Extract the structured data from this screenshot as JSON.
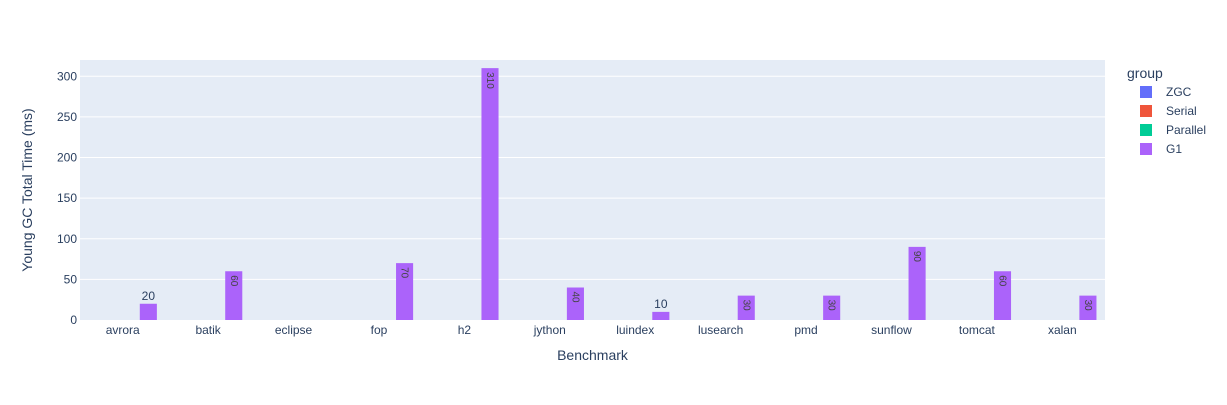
{
  "chart_data": {
    "type": "bar",
    "title": "",
    "xlabel": "Benchmark",
    "ylabel": "Young GC Total Time (ms)",
    "categories": [
      "avrora",
      "batik",
      "eclipse",
      "fop",
      "h2",
      "jython",
      "luindex",
      "lusearch",
      "pmd",
      "sunflow",
      "tomcat",
      "xalan"
    ],
    "ylim": [
      0,
      320
    ],
    "yticks": [
      0,
      50,
      100,
      150,
      200,
      250,
      300
    ],
    "legend_title": "group",
    "legend_position": "right",
    "grid": true,
    "series": [
      {
        "name": "ZGC",
        "color": "#636efa",
        "values": [
          0,
          0,
          0,
          0,
          0,
          0,
          0,
          0,
          0,
          0,
          0,
          0
        ]
      },
      {
        "name": "Serial",
        "color": "#EF553B",
        "values": [
          0,
          0,
          0,
          0,
          0,
          0,
          0,
          0,
          0,
          0,
          0,
          0
        ]
      },
      {
        "name": "Parallel",
        "color": "#00cc96",
        "values": [
          0,
          0,
          0,
          0,
          0,
          0,
          0,
          0,
          0,
          0,
          0,
          0
        ]
      },
      {
        "name": "G1",
        "color": "#ab63fa",
        "values": [
          20,
          60,
          null,
          70,
          310,
          40,
          10,
          30,
          30,
          90,
          60,
          30
        ]
      }
    ]
  }
}
